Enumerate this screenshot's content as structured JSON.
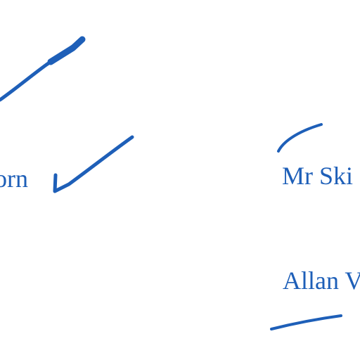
{
  "ink_color": "#1e5fb8",
  "fragments": [
    {
      "text": "orn"
    },
    {
      "text": "Mr Ski"
    },
    {
      "text": "Allan V"
    }
  ],
  "marks": [
    {
      "kind": "tick"
    },
    {
      "kind": "tick"
    },
    {
      "kind": "dash"
    },
    {
      "kind": "dash"
    }
  ]
}
